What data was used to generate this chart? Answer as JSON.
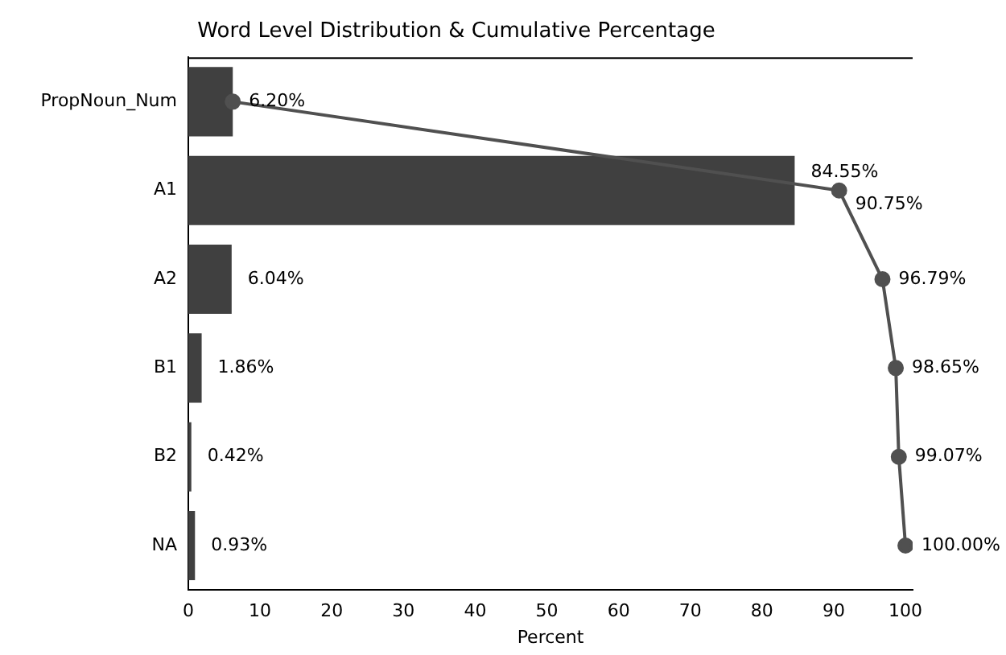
{
  "chart_data": {
    "type": "bar",
    "orientation": "horizontal",
    "title": "Word Level Distribution & Cumulative Percentage",
    "xlabel": "Percent",
    "categories": [
      "PropNoun_Num",
      "A1",
      "A2",
      "B1",
      "B2",
      "NA"
    ],
    "series": [
      {
        "color": "#404040",
        "values": [
          6.2,
          84.55,
          6.04,
          1.86,
          0.42,
          0.93
        ],
        "value_labels": [
          "6.20%",
          "84.55%",
          "6.04%",
          "1.86%",
          "0.42%",
          "0.93%"
        ]
      },
      {
        "type": "line",
        "color": "#505050",
        "values": [
          6.2,
          90.75,
          96.79,
          98.65,
          99.07,
          100
        ],
        "value_labels": [
          null,
          "90.75%",
          "96.79%",
          "98.65%",
          "99.07%",
          "100.00%"
        ]
      }
    ],
    "xlim": [
      0,
      101
    ],
    "xticks": [
      0,
      10,
      20,
      30,
      40,
      50,
      60,
      70,
      80,
      90,
      100
    ],
    "grid": false,
    "legend": false,
    "marker": "circle",
    "line_style": "solid"
  }
}
